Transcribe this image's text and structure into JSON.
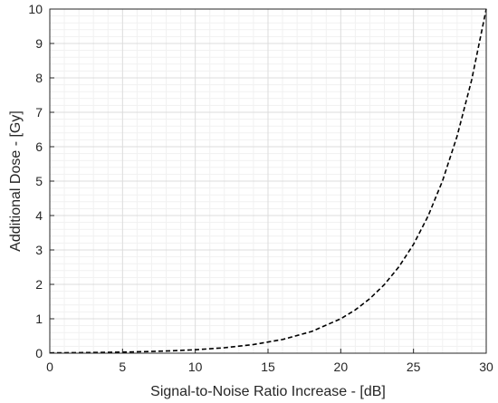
{
  "chart_data": {
    "type": "line",
    "title": "",
    "xlabel": "Signal-to-Noise Ratio Increase - [dB]",
    "ylabel": "Additional Dose - [Gy]",
    "xlim": [
      0,
      30
    ],
    "ylim": [
      0,
      10
    ],
    "xticks": [
      "0",
      "5",
      "10",
      "15",
      "20",
      "25",
      "30"
    ],
    "yticks": [
      "0",
      "1",
      "2",
      "3",
      "4",
      "5",
      "6",
      "7",
      "8",
      "9",
      "10"
    ],
    "grid": true,
    "minor_grid": true,
    "series": [
      {
        "name": "",
        "line_style": "dashed",
        "color": "#000000",
        "x": [
          0,
          2,
          4,
          6,
          8,
          10,
          12,
          14,
          16,
          18,
          20,
          21,
          22,
          23,
          24,
          25,
          26,
          27,
          28,
          29,
          30
        ],
        "y": [
          0.01,
          0.016,
          0.025,
          0.04,
          0.063,
          0.1,
          0.158,
          0.251,
          0.398,
          0.631,
          1.0,
          1.259,
          1.585,
          1.995,
          2.512,
          3.162,
          3.981,
          5.012,
          6.31,
          7.943,
          10.0
        ]
      }
    ]
  }
}
